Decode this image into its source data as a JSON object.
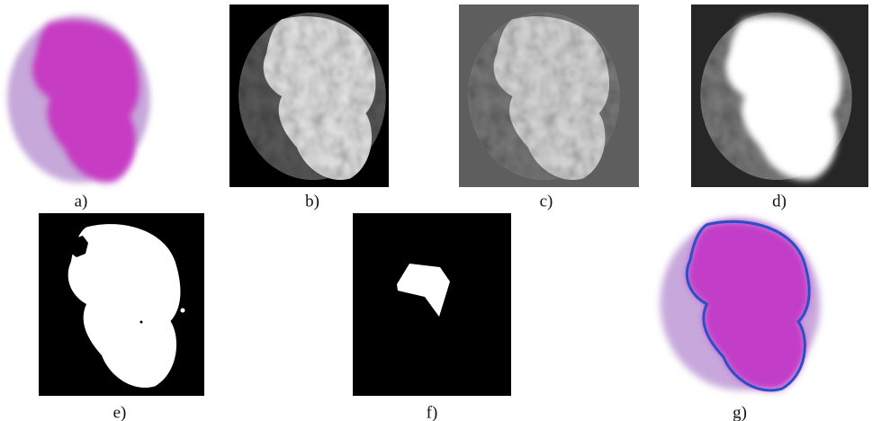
{
  "panels": [
    {
      "label": "a)"
    },
    {
      "label": "b)"
    },
    {
      "label": "c)"
    },
    {
      "label": "d)"
    },
    {
      "label": "e)"
    },
    {
      "label": "f)"
    },
    {
      "label": "g)"
    }
  ]
}
